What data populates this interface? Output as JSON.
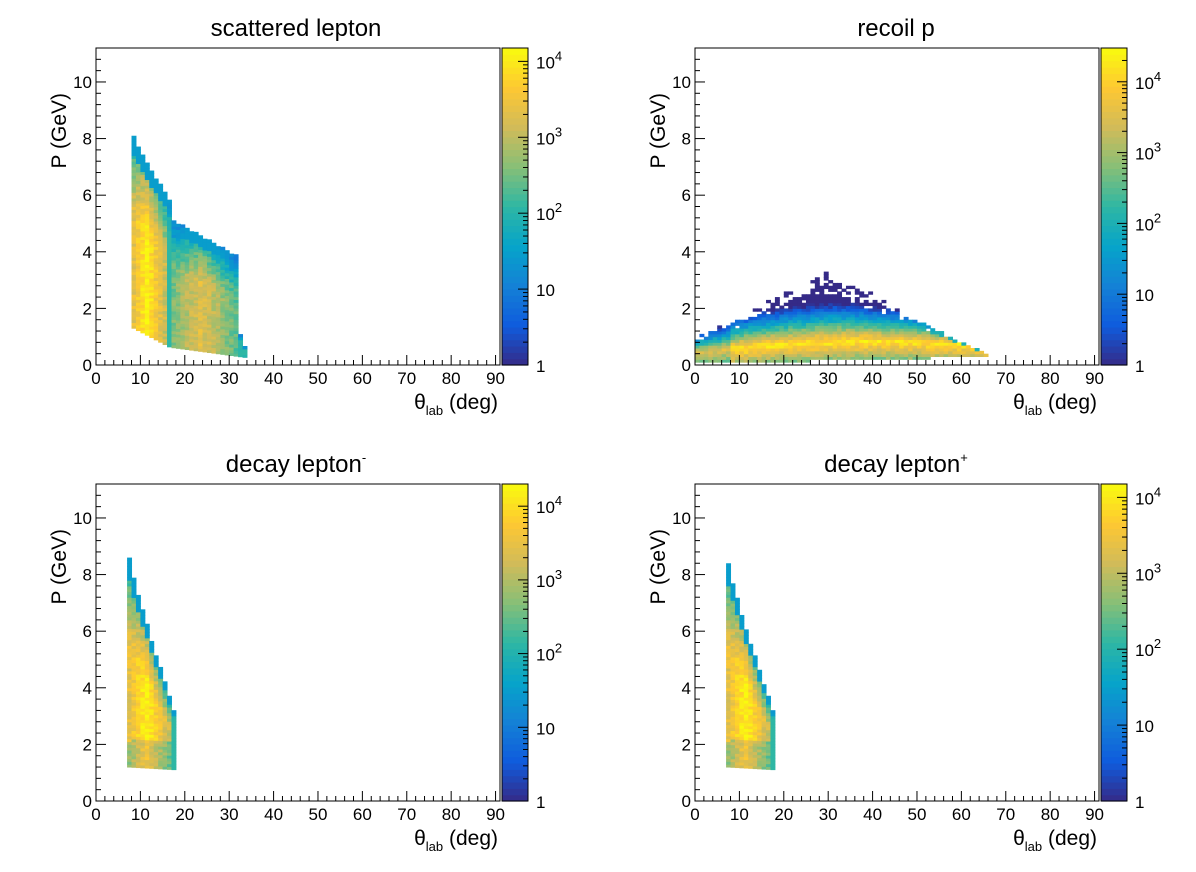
{
  "chart_data": [
    {
      "type": "heatmap",
      "title": "scattered lepton",
      "title_sup": "",
      "xlabel_symbol": "θ",
      "xlabel_sub": "lab",
      "xlabel_unit": "(deg)",
      "ylabel": "P (GeV)",
      "xlim": [
        0,
        91
      ],
      "ylim": [
        0,
        11.2
      ],
      "xticks": [
        "0",
        "10",
        "20",
        "30",
        "40",
        "50",
        "60",
        "70",
        "80",
        "90"
      ],
      "yticks": [
        "0",
        "2",
        "4",
        "6",
        "8",
        "10"
      ],
      "zscale": "log",
      "zlim": [
        1,
        15000
      ],
      "zticks": [
        {
          "base": "1",
          "exp": "",
          "value": 1
        },
        {
          "base": "10",
          "exp": "",
          "value": 10
        },
        {
          "base": "10",
          "exp": "2",
          "value": 100
        },
        {
          "base": "10",
          "exp": "3",
          "value": 1000
        },
        {
          "base": "10",
          "exp": "4",
          "value": 10000
        }
      ],
      "regions": [
        {
          "theta": [
            8,
            16.5
          ],
          "p_low": [
            1.3,
            0.6
          ],
          "p_high": [
            8.0,
            5.7
          ]
        },
        {
          "theta": [
            17.5,
            34
          ],
          "p_low": [
            0.6,
            0.25
          ],
          "p_high": [
            5.0,
            0.3
          ]
        }
      ]
    },
    {
      "type": "heatmap",
      "title": "recoil p",
      "title_sup": "",
      "xlabel_symbol": "θ",
      "xlabel_sub": "lab",
      "xlabel_unit": "(deg)",
      "ylabel": "P (GeV)",
      "xlim": [
        0,
        91
      ],
      "ylim": [
        0,
        11.2
      ],
      "xticks": [
        "0",
        "10",
        "20",
        "30",
        "40",
        "50",
        "60",
        "70",
        "80",
        "90"
      ],
      "yticks": [
        "0",
        "2",
        "4",
        "6",
        "8",
        "10"
      ],
      "zscale": "log",
      "zlim": [
        1,
        30000
      ],
      "zticks": [
        {
          "base": "1",
          "exp": "",
          "value": 1
        },
        {
          "base": "10",
          "exp": "",
          "value": 10
        },
        {
          "base": "10",
          "exp": "2",
          "value": 100
        },
        {
          "base": "10",
          "exp": "3",
          "value": 1000
        },
        {
          "base": "10",
          "exp": "4",
          "value": 10000
        }
      ],
      "regions": [
        {
          "theta": [
            0,
            66
          ],
          "p_low": [
            0.05,
            0.3
          ],
          "p_peak_theta": 30,
          "p_high_peak": 3.3
        }
      ]
    },
    {
      "type": "heatmap",
      "title": "decay lepton",
      "title_sup": "-",
      "xlabel_symbol": "θ",
      "xlabel_sub": "lab",
      "xlabel_unit": "(deg)",
      "ylabel": "P (GeV)",
      "xlim": [
        0,
        91
      ],
      "ylim": [
        0,
        11.2
      ],
      "xticks": [
        "0",
        "10",
        "20",
        "30",
        "40",
        "50",
        "60",
        "70",
        "80",
        "90"
      ],
      "yticks": [
        "0",
        "2",
        "4",
        "6",
        "8",
        "10"
      ],
      "zscale": "log",
      "zlim": [
        1,
        20000
      ],
      "zticks": [
        {
          "base": "1",
          "exp": "",
          "value": 1
        },
        {
          "base": "10",
          "exp": "",
          "value": 10
        },
        {
          "base": "10",
          "exp": "2",
          "value": 100
        },
        {
          "base": "10",
          "exp": "3",
          "value": 1000
        },
        {
          "base": "10",
          "exp": "4",
          "value": 10000
        }
      ],
      "regions": [
        {
          "theta": [
            7,
            18
          ],
          "p_low": [
            1.2,
            1.1
          ],
          "p_high": [
            8.5,
            2.7
          ]
        }
      ]
    },
    {
      "type": "heatmap",
      "title": "decay lepton",
      "title_sup": "+",
      "xlabel_symbol": "θ",
      "xlabel_sub": "lab",
      "xlabel_unit": "(deg)",
      "ylabel": "P (GeV)",
      "xlim": [
        0,
        91
      ],
      "ylim": [
        0,
        11.2
      ],
      "xticks": [
        "0",
        "10",
        "20",
        "30",
        "40",
        "50",
        "60",
        "70",
        "80",
        "90"
      ],
      "yticks": [
        "0",
        "2",
        "4",
        "6",
        "8",
        "10"
      ],
      "zscale": "log",
      "zlim": [
        1,
        15000
      ],
      "zticks": [
        {
          "base": "1",
          "exp": "",
          "value": 1
        },
        {
          "base": "10",
          "exp": "",
          "value": 10
        },
        {
          "base": "10",
          "exp": "2",
          "value": 100
        },
        {
          "base": "10",
          "exp": "3",
          "value": 1000
        },
        {
          "base": "10",
          "exp": "4",
          "value": 10000
        }
      ],
      "regions": [
        {
          "theta": [
            7,
            18
          ],
          "p_low": [
            1.2,
            1.1
          ],
          "p_high": [
            8.3,
            2.7
          ]
        }
      ]
    }
  ],
  "palette": [
    "#352a87",
    "#0f5cdd",
    "#1481d6",
    "#06a4ca",
    "#2eb7a4",
    "#87bf77",
    "#d1bb59",
    "#fec832",
    "#f9fb0e"
  ]
}
